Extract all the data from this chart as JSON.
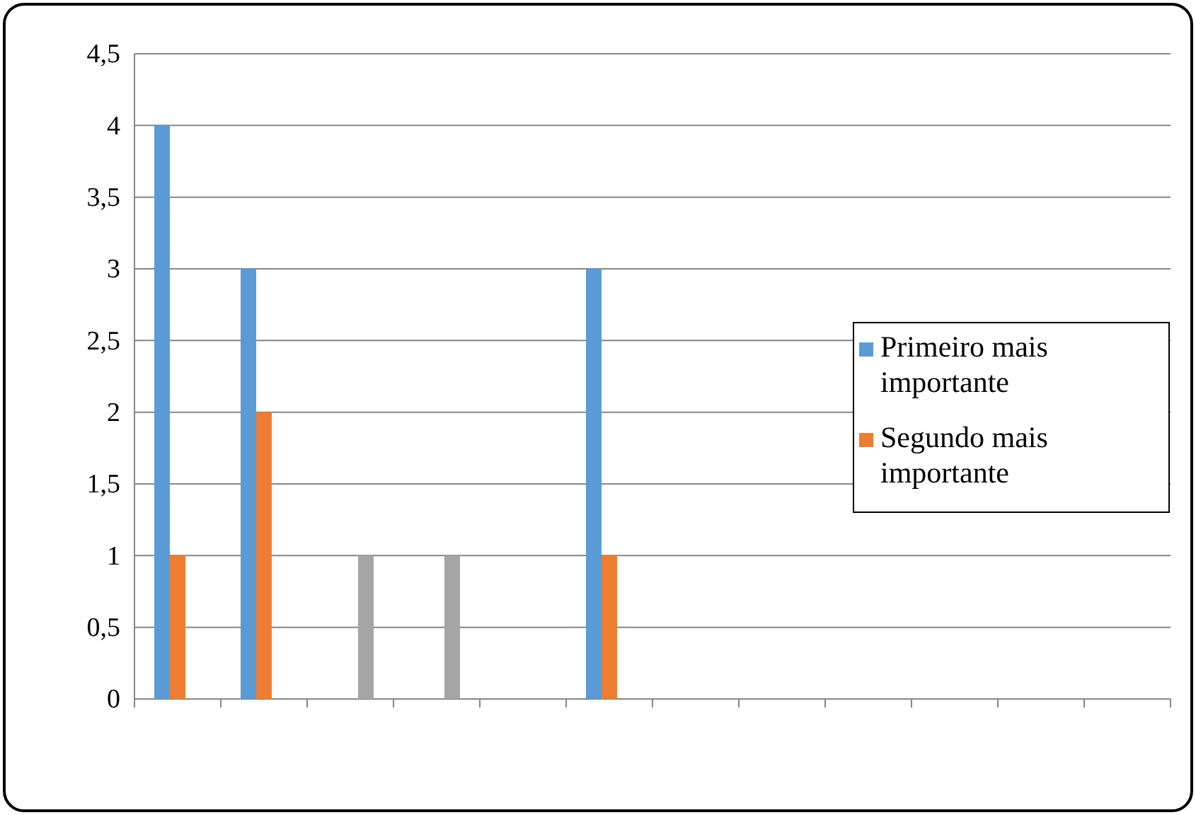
{
  "chart_data": {
    "type": "bar",
    "categories": [
      null,
      null,
      null,
      null,
      null,
      null,
      null,
      null,
      null,
      null,
      null,
      null
    ],
    "series": [
      {
        "name": "Primeiro mais importante",
        "color": "#5b9bd5",
        "values": [
          4,
          3,
          0,
          0,
          0,
          3,
          0,
          0,
          0,
          0,
          0,
          0
        ]
      },
      {
        "name": "Segundo mais importante",
        "color": "#ed7d31",
        "values": [
          1,
          2,
          0,
          0,
          0,
          1,
          0,
          0,
          0,
          0,
          0,
          0
        ]
      },
      {
        "color": "#a5a5a5",
        "values": [
          0,
          0,
          1,
          1,
          0,
          0,
          0,
          0,
          0,
          0,
          0,
          0
        ]
      }
    ],
    "ylim": [
      0,
      4.5
    ],
    "yticks": [
      0,
      {
        "value": 0.5,
        "label": "0,5"
      },
      1,
      {
        "value": 1.5,
        "label": "1,5"
      },
      2,
      {
        "value": 2.5,
        "label": "2,5"
      },
      3,
      {
        "value": 3.5,
        "label": "3,5"
      },
      4,
      {
        "value": 4.5,
        "label": "4,5"
      }
    ],
    "grid": "y",
    "legend": "right"
  }
}
